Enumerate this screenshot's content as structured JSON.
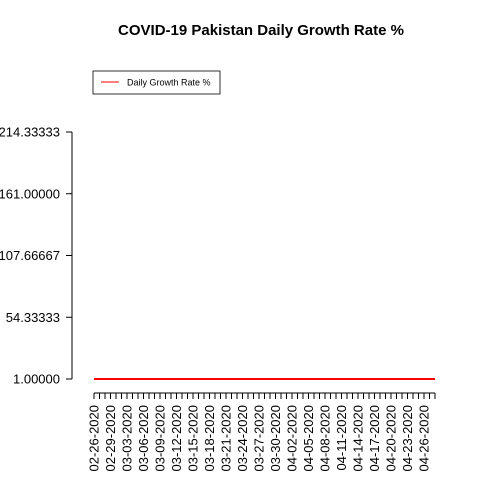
{
  "chart_data": {
    "type": "line",
    "title": "COVID-19 Pakistan Daily Growth Rate %",
    "xlabel": "",
    "ylabel": "",
    "ylim": [
      1.0,
      214.33333
    ],
    "y_ticks": [
      "1.00000",
      "54.33333",
      "107.66667",
      "161.00000",
      "214.33333"
    ],
    "x": [
      "02-26-2020",
      "02-27-2020",
      "02-28-2020",
      "02-29-2020",
      "03-01-2020",
      "03-02-2020",
      "03-03-2020",
      "03-04-2020",
      "03-05-2020",
      "03-06-2020",
      "03-07-2020",
      "03-08-2020",
      "03-09-2020",
      "03-10-2020",
      "03-11-2020",
      "03-12-2020",
      "03-13-2020",
      "03-14-2020",
      "03-15-2020",
      "03-16-2020",
      "03-17-2020",
      "03-18-2020",
      "03-19-2020",
      "03-20-2020",
      "03-21-2020",
      "03-22-2020",
      "03-23-2020",
      "03-24-2020",
      "03-25-2020",
      "03-26-2020",
      "03-27-2020",
      "03-28-2020",
      "03-29-2020",
      "03-30-2020",
      "03-31-2020",
      "04-01-2020",
      "04-02-2020",
      "04-03-2020",
      "04-04-2020",
      "04-05-2020",
      "04-06-2020",
      "04-07-2020",
      "04-08-2020",
      "04-09-2020",
      "04-10-2020",
      "04-11-2020",
      "04-12-2020",
      "04-13-2020",
      "04-14-2020",
      "04-15-2020",
      "04-16-2020",
      "04-17-2020",
      "04-18-2020",
      "04-19-2020",
      "04-20-2020",
      "04-21-2020",
      "04-22-2020",
      "04-23-2020",
      "04-24-2020",
      "04-25-2020",
      "04-26-2020",
      "04-27-2020",
      "04-28-2020"
    ],
    "x_tick_labels": [
      "02-26-2020",
      "02-29-2020",
      "03-03-2020",
      "03-06-2020",
      "03-09-2020",
      "03-12-2020",
      "03-15-2020",
      "03-18-2020",
      "03-21-2020",
      "03-24-2020",
      "03-27-2020",
      "03-30-2020",
      "04-02-2020",
      "04-05-2020",
      "04-08-2020",
      "04-11-2020",
      "04-14-2020",
      "04-17-2020",
      "04-20-2020",
      "04-23-2020",
      "04-26-2020"
    ],
    "series": [
      {
        "name": "Daily Growth Rate %",
        "color": "#ff0000",
        "values": [
          1,
          1,
          1,
          1,
          1,
          1,
          1,
          1,
          1,
          1,
          1,
          1,
          1,
          1,
          1,
          1,
          1,
          1,
          1,
          1,
          1,
          1,
          1,
          1,
          1,
          1,
          1,
          1,
          1,
          1,
          1,
          1,
          1,
          1,
          1,
          1,
          1,
          1,
          1,
          1,
          1,
          1,
          1,
          1,
          1,
          1,
          1,
          1,
          1,
          1,
          1,
          1,
          1,
          1,
          1,
          1,
          1,
          1,
          1,
          1,
          1,
          1,
          1
        ]
      }
    ],
    "legend": "top-left",
    "grid": false
  }
}
